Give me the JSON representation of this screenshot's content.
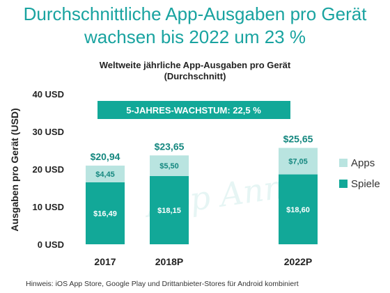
{
  "headline": {
    "line1": "Durchschnittliche App-Ausgaben pro Gerät",
    "line2": "wachsen bis 2022 um 23 %"
  },
  "chart_data": {
    "type": "bar",
    "stacked": true,
    "title": "Weltweite jährliche App-Ausgaben pro Gerät",
    "subtitle": "(Durchschnitt)",
    "ylabel": "Ausgaben pro Gerät (USD)",
    "ylim": [
      0,
      40
    ],
    "yticks": [
      0,
      10,
      20,
      30,
      40
    ],
    "ytick_labels": [
      "0 USD",
      "10 USD",
      "20 USD",
      "30 USD",
      "40 USD"
    ],
    "categories": [
      "2017",
      "2018P",
      "2022P"
    ],
    "series": [
      {
        "name": "Spiele",
        "values": [
          16.49,
          18.15,
          18.6
        ],
        "labels": [
          "$16,49",
          "$18,15",
          "$18,60"
        ]
      },
      {
        "name": "Apps",
        "values": [
          4.45,
          5.5,
          7.05
        ],
        "labels": [
          "$4,45",
          "$5,50",
          "$7,05"
        ]
      }
    ],
    "totals": [
      20.94,
      23.65,
      25.65
    ],
    "total_labels": [
      "$20,94",
      "$23,65",
      "$25,65"
    ],
    "banner": "5-JAHRES-WACHSTUM: 22,5 %",
    "watermark": "App Annie",
    "legend_position": "right",
    "grid": false
  },
  "colors": {
    "headline": "#19a3a0",
    "spiele": "#12a898",
    "apps": "#b9e4e0",
    "banner": "#12a898",
    "total_label": "#14877f",
    "text": "#222222"
  },
  "note": "Hinweis: iOS App Store, Google Play und Drittanbieter-Stores für Android kombiniert"
}
